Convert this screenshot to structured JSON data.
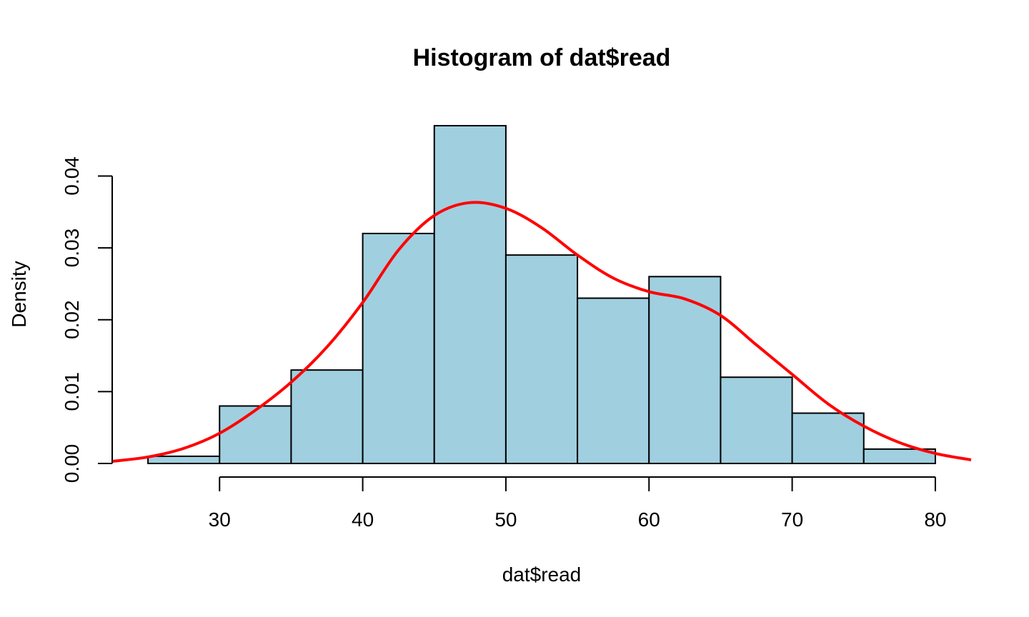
{
  "chart_data": {
    "type": "histogram",
    "title": "Histogram of dat$read",
    "xlabel": "dat$read",
    "ylabel": "Density",
    "xlim": [
      22.5,
      82.5
    ],
    "ylim": [
      0,
      0.047
    ],
    "x_ticks": [
      30,
      40,
      50,
      60,
      70,
      80
    ],
    "x_tick_labels": [
      "30",
      "40",
      "50",
      "60",
      "70",
      "80"
    ],
    "y_ticks": [
      0,
      0.01,
      0.02,
      0.03,
      0.04
    ],
    "y_tick_labels": [
      "0.00",
      "0.01",
      "0.02",
      "0.03",
      "0.04"
    ],
    "bins": [
      {
        "from": 25,
        "to": 30,
        "density": 0.001
      },
      {
        "from": 30,
        "to": 35,
        "density": 0.008
      },
      {
        "from": 35,
        "to": 40,
        "density": 0.013
      },
      {
        "from": 40,
        "to": 45,
        "density": 0.032
      },
      {
        "from": 45,
        "to": 50,
        "density": 0.047
      },
      {
        "from": 50,
        "to": 55,
        "density": 0.029
      },
      {
        "from": 55,
        "to": 60,
        "density": 0.023
      },
      {
        "from": 60,
        "to": 65,
        "density": 0.026
      },
      {
        "from": 65,
        "to": 70,
        "density": 0.012
      },
      {
        "from": 70,
        "to": 75,
        "density": 0.007
      },
      {
        "from": 75,
        "to": 80,
        "density": 0.002
      }
    ],
    "bar_color": "#a0cfe0",
    "density_curve": {
      "color": "#ff0000",
      "x": [
        22.5,
        25,
        27.5,
        30,
        32.5,
        35,
        37.5,
        40,
        42.5,
        45,
        47.5,
        50,
        52.5,
        55,
        57.5,
        60,
        62.5,
        65,
        67.5,
        70,
        72.5,
        75,
        77.5,
        80,
        82.5
      ],
      "y": [
        0.0003,
        0.0009,
        0.0021,
        0.0042,
        0.0074,
        0.0113,
        0.0162,
        0.0224,
        0.0297,
        0.0345,
        0.0363,
        0.0355,
        0.0328,
        0.029,
        0.0258,
        0.0239,
        0.0229,
        0.0206,
        0.0165,
        0.0124,
        0.0083,
        0.0052,
        0.0029,
        0.0014,
        0.0005
      ]
    }
  }
}
